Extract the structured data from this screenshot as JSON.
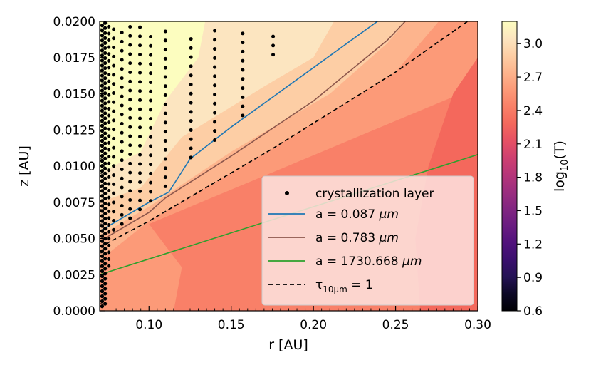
{
  "chart_data": {
    "type": "contour",
    "xlabel": "r [AU]",
    "ylabel": "z [AU]",
    "xlim": [
      0.07,
      0.3
    ],
    "ylim": [
      0.0,
      0.02
    ],
    "xticks": [
      "0.10",
      "0.15",
      "0.20",
      "0.25",
      "0.30"
    ],
    "xtick_values": [
      0.1,
      0.15,
      0.2,
      0.25,
      0.3
    ],
    "yticks": [
      "0.0000",
      "0.0025",
      "0.0050",
      "0.0075",
      "0.0100",
      "0.0125",
      "0.0150",
      "0.0175",
      "0.0200"
    ],
    "ytick_values": [
      0.0,
      0.0025,
      0.005,
      0.0075,
      0.01,
      0.0125,
      0.015,
      0.0175,
      0.02
    ],
    "colorbar": {
      "label_main": "log",
      "label_sub": "10",
      "label_rest": "(T)",
      "ticks": [
        "0.6",
        "0.9",
        "1.2",
        "1.5",
        "1.8",
        "2.1",
        "2.4",
        "2.7",
        "3.0"
      ],
      "tick_values": [
        0.6,
        0.9,
        1.2,
        1.5,
        1.8,
        2.1,
        2.4,
        2.7,
        3.0
      ],
      "range": [
        0.6,
        3.2
      ],
      "colors": [
        "#000004",
        "#0c0826",
        "#241254",
        "#3a0f6e",
        "#51127c",
        "#6a1c81",
        "#822681",
        "#9c2e7f",
        "#b63679",
        "#cf4070",
        "#e65164",
        "#f4685c",
        "#f98068",
        "#fc9a78",
        "#fdb48d",
        "#fdcea5",
        "#fce5c0",
        "#fcfdbf"
      ]
    },
    "background_levels": [
      {
        "name": "region-disk-midplane",
        "value": 2.5
      },
      {
        "name": "region-disk-lower",
        "value": 2.6
      },
      {
        "name": "region-disk-mid",
        "value": 2.7
      },
      {
        "name": "region-disk-upper",
        "value": 2.85
      },
      {
        "name": "region-atmosphere",
        "value": 3.0
      },
      {
        "name": "region-outer-cool",
        "value": 2.3
      },
      {
        "name": "region-hot-inner",
        "value": 3.15
      }
    ],
    "series": [
      {
        "name": "a = 0.087 µm",
        "label_prefix": "a = 0.087 ",
        "label_unit": "µm",
        "color": "#1f77b4",
        "dash": "",
        "x": [
          0.07,
          0.1,
          0.112,
          0.125,
          0.15,
          0.2,
          0.245
        ],
        "y": [
          0.0055,
          0.0075,
          0.0082,
          0.0105,
          0.0127,
          0.0168,
          0.0205
        ]
      },
      {
        "name": "a = 0.783 µm",
        "label_prefix": "a = 0.783 ",
        "label_unit": "µm",
        "color": "#8c564b",
        "dash": "",
        "x": [
          0.07,
          0.1,
          0.11,
          0.15,
          0.2,
          0.245,
          0.26
        ],
        "y": [
          0.0048,
          0.0068,
          0.0078,
          0.0107,
          0.0145,
          0.0187,
          0.0205
        ]
      },
      {
        "name": "a = 1730.668 µm",
        "label_prefix": "a = 1730.668 ",
        "label_unit": "µm",
        "color": "#2ca02c",
        "dash": "",
        "x": [
          0.07,
          0.3
        ],
        "y": [
          0.0025,
          0.0108
        ]
      },
      {
        "name": "tau_10um = 1",
        "label_prefix": "τ",
        "label_sub": "10µm",
        "label_suffix": " = 1",
        "color": "#000000",
        "dash": "6,4",
        "x": [
          0.07,
          0.1,
          0.175,
          0.25,
          0.3
        ],
        "y": [
          0.0044,
          0.0062,
          0.0112,
          0.0165,
          0.0205
        ]
      }
    ],
    "crystallization": {
      "name": "crystallization layer",
      "columns": [
        {
          "x": 0.0785,
          "ymin": 0.0056,
          "ymax": 0.0198
        },
        {
          "x": 0.0835,
          "ymin": 0.006,
          "ymax": 0.0196
        },
        {
          "x": 0.0885,
          "ymin": 0.0064,
          "ymax": 0.0197
        },
        {
          "x": 0.0945,
          "ymin": 0.007,
          "ymax": 0.0196
        },
        {
          "x": 0.101,
          "ymin": 0.0076,
          "ymax": 0.0195
        },
        {
          "x": 0.11,
          "ymin": 0.0086,
          "ymax": 0.0194
        },
        {
          "x": 0.1255,
          "ymin": 0.0106,
          "ymax": 0.0194
        },
        {
          "x": 0.14,
          "ymin": 0.0118,
          "ymax": 0.0194
        },
        {
          "x": 0.157,
          "ymin": 0.0135,
          "ymax": 0.0195
        },
        {
          "x": 0.1755,
          "ymin": 0.0177,
          "ymax": 0.0192
        }
      ],
      "step": 0.00063,
      "inner_edge_x": 0.0715
    },
    "legend": {
      "position": "lower-right"
    }
  }
}
